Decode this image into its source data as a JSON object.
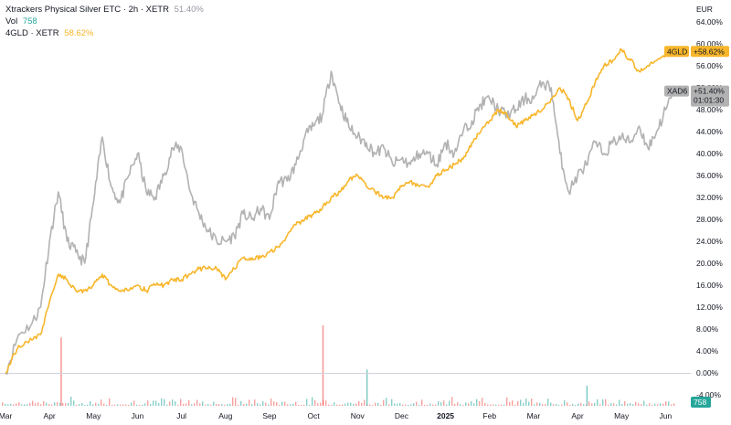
{
  "legend": {
    "main_title": "Xtrackers Physical Silver ETC · 2h · XETR",
    "main_value": "51.40%",
    "main_value_color": "#9598a1",
    "vol_label": "Vol",
    "vol_value": "758",
    "vol_color": "#26a69a",
    "compare_title": "4GLD · XETR",
    "compare_value": "58.62%",
    "compare_color": "#f7b62b"
  },
  "currency": "EUR",
  "tags": {
    "gold_symbol": "4GLD",
    "gold_value": "+58.62%",
    "silver_symbol": "XAD6",
    "silver_value": "+51.40%",
    "silver_countdown": "01:01:30",
    "volume_value": "758"
  },
  "colors": {
    "silver": "#b2b2b2",
    "gold": "#f7b62b",
    "vol_up": "#26a69a",
    "vol_down": "#ef5350",
    "tag_gold_bg": "#f7b62b",
    "tag_silver_bg": "#b2b2b2",
    "tag_vol_bg": "#26a69a"
  },
  "chart_data": {
    "type": "line",
    "ylabel_unit": "%",
    "ylim": [
      -4,
      64
    ],
    "y_ticks": [
      "64.00%",
      "60.00%",
      "56.00%",
      "52.00%",
      "48.00%",
      "44.00%",
      "40.00%",
      "36.00%",
      "32.00%",
      "28.00%",
      "24.00%",
      "20.00%",
      "16.00%",
      "12.00%",
      "8.00%",
      "4.00%",
      "0.00%",
      "-4.00%"
    ],
    "x_ticks": [
      {
        "label": "Mar",
        "t": 0,
        "bold": false
      },
      {
        "label": "Apr",
        "t": 1,
        "bold": false
      },
      {
        "label": "May",
        "t": 2,
        "bold": false
      },
      {
        "label": "Jun",
        "t": 3,
        "bold": false
      },
      {
        "label": "Jul",
        "t": 4,
        "bold": false
      },
      {
        "label": "Aug",
        "t": 5,
        "bold": false
      },
      {
        "label": "Sep",
        "t": 6,
        "bold": false
      },
      {
        "label": "Oct",
        "t": 7,
        "bold": false
      },
      {
        "label": "Nov",
        "t": 8,
        "bold": false
      },
      {
        "label": "Dec",
        "t": 9,
        "bold": false
      },
      {
        "label": "2025",
        "t": 10,
        "bold": true
      },
      {
        "label": "Feb",
        "t": 11,
        "bold": false
      },
      {
        "label": "Mar",
        "t": 12,
        "bold": false
      },
      {
        "label": "Apr",
        "t": 13,
        "bold": false
      },
      {
        "label": "May",
        "t": 14,
        "bold": false
      },
      {
        "label": "Jun",
        "t": 15,
        "bold": false
      }
    ],
    "series": [
      {
        "name": "XAD6",
        "x": [
          0,
          0.3,
          0.6,
          0.8,
          1.0,
          1.2,
          1.4,
          1.6,
          1.8,
          2.0,
          2.2,
          2.4,
          2.6,
          2.8,
          3.0,
          3.2,
          3.4,
          3.6,
          3.8,
          4.0,
          4.2,
          4.4,
          4.6,
          4.8,
          5.0,
          5.2,
          5.4,
          5.6,
          5.8,
          6.0,
          6.2,
          6.4,
          6.6,
          6.8,
          7.0,
          7.2,
          7.4,
          7.6,
          7.8,
          8.0,
          8.2,
          8.4,
          8.6,
          8.8,
          9.0,
          9.2,
          9.4,
          9.6,
          9.8,
          10.0,
          10.2,
          10.4,
          10.6,
          10.8,
          11.0,
          11.2,
          11.4,
          11.6,
          11.8,
          12.0,
          12.2,
          12.4,
          12.6,
          12.8,
          13.0,
          13.2,
          13.4,
          13.6,
          13.8,
          14.0,
          14.2,
          14.4,
          14.6,
          14.8,
          15.0,
          15.2
        ],
        "values": [
          0,
          7,
          9,
          12,
          24,
          33,
          24,
          22,
          20,
          31,
          43,
          34,
          31,
          36,
          40,
          33,
          32,
          36,
          41,
          41,
          33,
          29,
          26,
          24,
          24,
          25,
          29,
          28,
          30,
          28,
          35,
          35,
          38,
          43,
          45,
          47,
          55,
          49,
          45,
          43,
          42,
          40,
          41,
          38,
          39,
          38,
          40,
          40,
          38,
          42,
          40,
          44,
          46,
          49,
          50,
          48,
          47,
          48,
          50,
          50,
          53,
          52,
          40,
          33,
          36,
          38,
          42,
          40,
          42,
          43,
          42,
          45,
          41,
          44,
          48,
          51.4
        ]
      },
      {
        "name": "4GLD",
        "x": [
          0,
          0.3,
          0.6,
          0.8,
          1.0,
          1.2,
          1.4,
          1.6,
          1.8,
          2.0,
          2.2,
          2.4,
          2.6,
          2.8,
          3.0,
          3.2,
          3.4,
          3.6,
          3.8,
          4.0,
          4.2,
          4.4,
          4.6,
          4.8,
          5.0,
          5.2,
          5.4,
          5.6,
          5.8,
          6.0,
          6.2,
          6.4,
          6.6,
          6.8,
          7.0,
          7.2,
          7.4,
          7.6,
          7.8,
          8.0,
          8.2,
          8.4,
          8.6,
          8.8,
          9.0,
          9.2,
          9.4,
          9.6,
          9.8,
          10.0,
          10.2,
          10.4,
          10.6,
          10.8,
          11.0,
          11.2,
          11.4,
          11.6,
          11.8,
          12.0,
          12.2,
          12.4,
          12.6,
          12.8,
          13.0,
          13.2,
          13.4,
          13.6,
          13.8,
          14.0,
          14.2,
          14.4,
          14.6,
          14.8,
          15.0,
          15.2
        ],
        "values": [
          0,
          5,
          6,
          7,
          13,
          18,
          17,
          15,
          15,
          16,
          18,
          16,
          15,
          15,
          16,
          15,
          16,
          16,
          17,
          17,
          18,
          19,
          19,
          19,
          17,
          19,
          21,
          21,
          21,
          22,
          23,
          25,
          27,
          28,
          29,
          30,
          32,
          33,
          35,
          36,
          34,
          33,
          32,
          32,
          34,
          35,
          34,
          34,
          36,
          37,
          38,
          39,
          42,
          44,
          46,
          48,
          47,
          45,
          46,
          47,
          48,
          50,
          52,
          50,
          46,
          49,
          53,
          56,
          57,
          59,
          57,
          55,
          56,
          57,
          58,
          58.62
        ]
      }
    ],
    "volume": {
      "series_name": "Vol",
      "last_value": 758,
      "spikes": [
        {
          "t": 1.25,
          "rel": 0.85,
          "dir": "down"
        },
        {
          "t": 7.2,
          "rel": 1.0,
          "dir": "down"
        },
        {
          "t": 8.2,
          "rel": 0.45,
          "dir": "up"
        },
        {
          "t": 13.2,
          "rel": 0.25,
          "dir": "up"
        }
      ]
    }
  }
}
